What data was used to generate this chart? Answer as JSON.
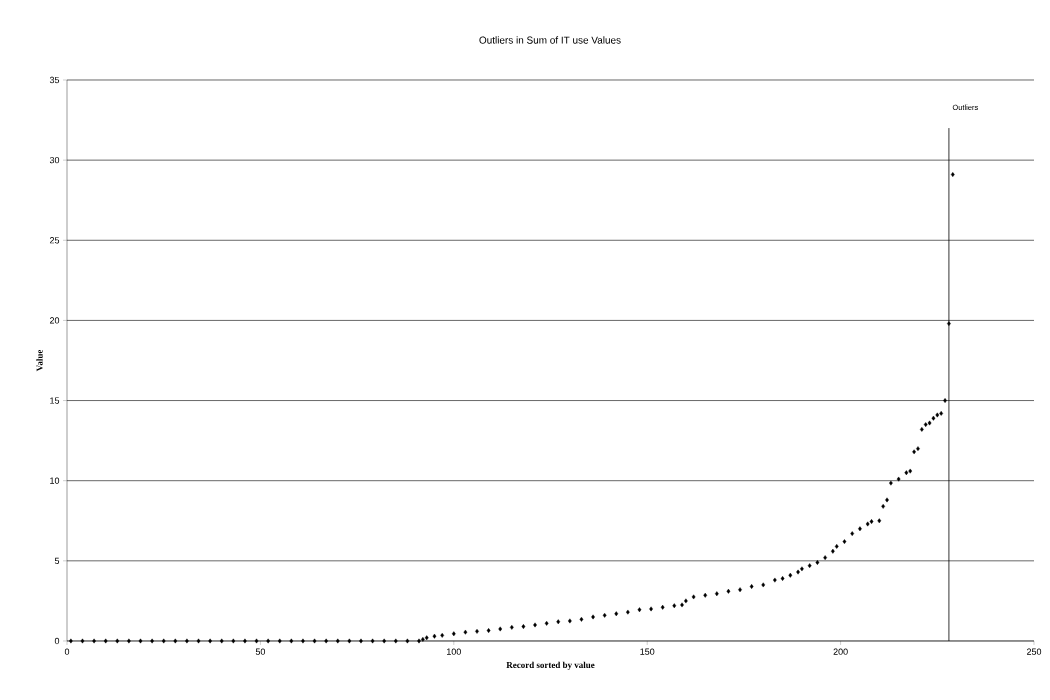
{
  "chart_data": {
    "type": "scatter",
    "title": "Outliers in Sum of IT use Values",
    "xlabel": "Record sorted by value",
    "ylabel": "Value",
    "xlim": [
      0,
      250
    ],
    "xticks": [
      0,
      50,
      100,
      150,
      200,
      250
    ],
    "ylim": [
      0,
      35
    ],
    "yticks": [
      0,
      5,
      10,
      15,
      20,
      25,
      30,
      35
    ],
    "grid": "y",
    "marker": "diamond",
    "ref_lines": [
      {
        "axis": "x",
        "value": 228,
        "label": "Outliers",
        "color": "#000000"
      }
    ],
    "series": [
      {
        "color": "#000000",
        "x": [
          1,
          4,
          7,
          10,
          13,
          16,
          19,
          22,
          25,
          28,
          31,
          34,
          37,
          40,
          43,
          46,
          49,
          52,
          55,
          58,
          61,
          64,
          67,
          70,
          73,
          76,
          79,
          82,
          85,
          88,
          91,
          92,
          93,
          95,
          97,
          100,
          103,
          106,
          109,
          112,
          115,
          118,
          121,
          124,
          127,
          130,
          133,
          136,
          139,
          142,
          145,
          148,
          151,
          154,
          157,
          159,
          160,
          162,
          165,
          168,
          171,
          174,
          177,
          180,
          183,
          185,
          187,
          189,
          190,
          192,
          194,
          196,
          198,
          199,
          201,
          203,
          205,
          207,
          208,
          210,
          211,
          212,
          213,
          215,
          217,
          218,
          219,
          220,
          221,
          222,
          223,
          224,
          225,
          226,
          227,
          228,
          229
        ],
        "values": [
          0,
          0,
          0,
          0,
          0,
          0,
          0,
          0,
          0,
          0,
          0,
          0,
          0,
          0,
          0,
          0,
          0,
          0,
          0,
          0,
          0,
          0,
          0,
          0,
          0,
          0,
          0,
          0,
          0,
          0,
          0,
          0.1,
          0.2,
          0.3,
          0.35,
          0.45,
          0.55,
          0.6,
          0.65,
          0.75,
          0.85,
          0.9,
          1.0,
          1.1,
          1.2,
          1.25,
          1.35,
          1.5,
          1.6,
          1.7,
          1.8,
          1.95,
          2.0,
          2.1,
          2.2,
          2.25,
          2.5,
          2.75,
          2.85,
          2.95,
          3.1,
          3.2,
          3.4,
          3.5,
          3.8,
          3.9,
          4.1,
          4.3,
          4.5,
          4.7,
          4.9,
          5.2,
          5.6,
          5.9,
          6.2,
          6.7,
          7.0,
          7.3,
          7.45,
          7.5,
          8.4,
          8.8,
          9.85,
          10.1,
          10.5,
          10.6,
          11.8,
          12.0,
          13.2,
          13.5,
          13.6,
          13.9,
          14.1,
          14.2,
          15.0,
          19.8,
          29.1
        ]
      }
    ]
  }
}
